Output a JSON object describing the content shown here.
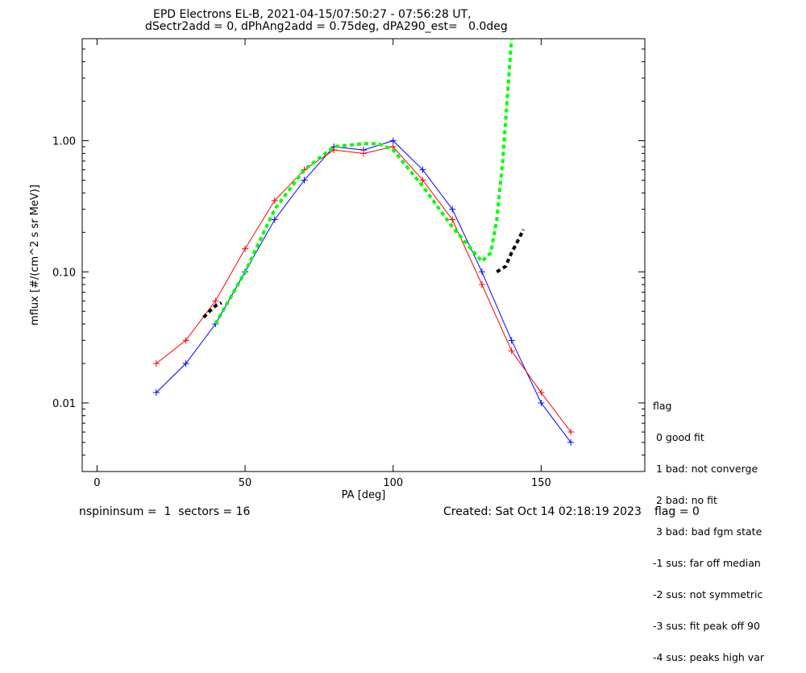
{
  "chart_data": {
    "type": "line",
    "title": "EPD Electrons EL-B, 2021-04-15/07:50:27 - 07:56:28 UT,",
    "subtitle": "dSectr2add = 0, dPhAng2add = 0.75deg, dPA290_est=   0.0deg",
    "xlabel": "PA [deg]",
    "ylabel": "mflux [#/(cm^2 s sr MeV)]",
    "xlim": [
      -5,
      185
    ],
    "ylim": [
      0.003,
      6.0
    ],
    "yscale": "log",
    "x_ticks": [
      0,
      50,
      100,
      150
    ],
    "x_tick_labels": [
      "0",
      "50",
      "100",
      "150"
    ],
    "y_ticks": [
      0.01,
      0.1,
      1.0
    ],
    "y_tick_labels": [
      "0.01",
      "0.10",
      "1.00"
    ],
    "grid": false,
    "colors": {
      "blue": "#0000ff",
      "red": "#ff0000",
      "green": "#00ff00",
      "black": "#000000"
    },
    "series": [
      {
        "color": "blue",
        "marker": "+",
        "x": [
          20,
          30,
          40,
          50,
          60,
          70,
          80,
          90,
          100,
          110,
          120,
          130,
          140,
          150,
          160
        ],
        "y": [
          0.012,
          0.02,
          0.04,
          0.1,
          0.25,
          0.5,
          0.9,
          0.85,
          1.0,
          0.6,
          0.3,
          0.1,
          0.03,
          0.01,
          0.005
        ]
      },
      {
        "color": "red",
        "marker": "+",
        "x": [
          20,
          30,
          40,
          50,
          60,
          70,
          80,
          90,
          100,
          110,
          120,
          130,
          140,
          150,
          160
        ],
        "y": [
          0.02,
          0.03,
          0.06,
          0.15,
          0.35,
          0.6,
          0.85,
          0.8,
          0.9,
          0.5,
          0.25,
          0.08,
          0.025,
          0.012,
          0.006
        ]
      },
      {
        "color": "green",
        "style": "dotted",
        "x": [
          40,
          50,
          60,
          70,
          80,
          90,
          95,
          100,
          110,
          120,
          130,
          133,
          135,
          137,
          140
        ],
        "y": [
          0.04,
          0.1,
          0.3,
          0.6,
          0.9,
          0.95,
          0.95,
          0.85,
          0.45,
          0.22,
          0.12,
          0.14,
          0.25,
          0.7,
          6.0
        ]
      },
      {
        "color": "black",
        "style": "dotted",
        "x": [
          36,
          38,
          40,
          42
        ],
        "y": [
          0.045,
          0.05,
          0.055,
          0.058
        ]
      },
      {
        "color": "black",
        "style": "dotted",
        "x": [
          135,
          138,
          140,
          142,
          144
        ],
        "y": [
          0.1,
          0.11,
          0.14,
          0.17,
          0.21
        ]
      }
    ]
  },
  "legend": {
    "title": "flag",
    "items": [
      " 0 good fit",
      " 1 bad: not converge",
      " 2 bad: no fit",
      " 3 bad: bad fgm state",
      "-1 sus: far off median",
      "-2 sus: not symmetric",
      "-3 sus: fit peak off 90",
      "-4 sus: peaks high var"
    ]
  },
  "footer": {
    "left": "nspininsum =  1  sectors = 16",
    "created": "Created: Sat Oct 14 02:18:19 2023",
    "flag": "flag = 0"
  }
}
